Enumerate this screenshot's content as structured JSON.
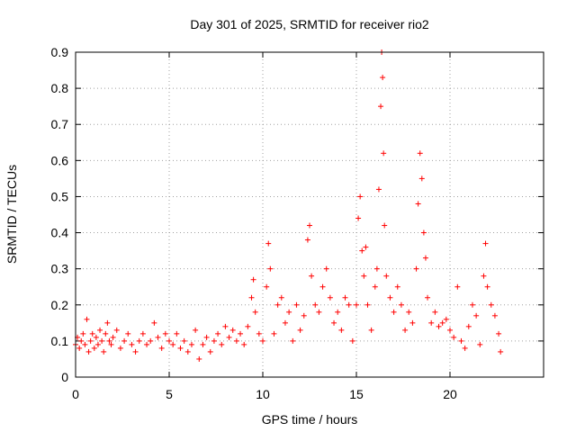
{
  "chart_data": {
    "type": "scatter",
    "title": "Day 301 of 2025, SRMTID for receiver rio2",
    "xlabel": "GPS time / hours",
    "ylabel": "SRMTID / TECUs",
    "xlim": [
      0,
      25
    ],
    "ylim": [
      0,
      0.9
    ],
    "xticks": [
      0,
      5,
      10,
      15,
      20
    ],
    "yticks": [
      0,
      0.1,
      0.2,
      0.3,
      0.4,
      0.5,
      0.6,
      0.7,
      0.8,
      0.9
    ],
    "grid": true,
    "marker": "+",
    "series_color": "#ff0000",
    "series": [
      {
        "name": "rio2",
        "points": [
          [
            0.0,
            0.09
          ],
          [
            0.1,
            0.11
          ],
          [
            0.2,
            0.08
          ],
          [
            0.3,
            0.1
          ],
          [
            0.4,
            0.12
          ],
          [
            0.5,
            0.09
          ],
          [
            0.6,
            0.16
          ],
          [
            0.7,
            0.07
          ],
          [
            0.8,
            0.1
          ],
          [
            0.9,
            0.12
          ],
          [
            1.0,
            0.08
          ],
          [
            1.1,
            0.11
          ],
          [
            1.2,
            0.09
          ],
          [
            1.3,
            0.13
          ],
          [
            1.4,
            0.1
          ],
          [
            1.5,
            0.07
          ],
          [
            1.6,
            0.12
          ],
          [
            1.7,
            0.15
          ],
          [
            1.8,
            0.1
          ],
          [
            1.9,
            0.09
          ],
          [
            2.0,
            0.11
          ],
          [
            2.2,
            0.13
          ],
          [
            2.4,
            0.08
          ],
          [
            2.6,
            0.1
          ],
          [
            2.8,
            0.12
          ],
          [
            3.0,
            0.09
          ],
          [
            3.2,
            0.07
          ],
          [
            3.4,
            0.1
          ],
          [
            3.6,
            0.12
          ],
          [
            3.8,
            0.09
          ],
          [
            4.0,
            0.1
          ],
          [
            4.2,
            0.15
          ],
          [
            4.4,
            0.11
          ],
          [
            4.6,
            0.08
          ],
          [
            4.8,
            0.12
          ],
          [
            5.0,
            0.1
          ],
          [
            5.2,
            0.09
          ],
          [
            5.4,
            0.12
          ],
          [
            5.6,
            0.08
          ],
          [
            5.8,
            0.1
          ],
          [
            6.0,
            0.07
          ],
          [
            6.2,
            0.09
          ],
          [
            6.4,
            0.13
          ],
          [
            6.6,
            0.05
          ],
          [
            6.8,
            0.09
          ],
          [
            7.0,
            0.11
          ],
          [
            7.2,
            0.07
          ],
          [
            7.4,
            0.1
          ],
          [
            7.6,
            0.12
          ],
          [
            7.8,
            0.09
          ],
          [
            8.0,
            0.14
          ],
          [
            8.2,
            0.11
          ],
          [
            8.4,
            0.13
          ],
          [
            8.6,
            0.1
          ],
          [
            8.8,
            0.12
          ],
          [
            9.0,
            0.09
          ],
          [
            9.2,
            0.14
          ],
          [
            9.4,
            0.22
          ],
          [
            9.5,
            0.27
          ],
          [
            9.6,
            0.18
          ],
          [
            9.8,
            0.12
          ],
          [
            10.0,
            0.1
          ],
          [
            10.2,
            0.25
          ],
          [
            10.3,
            0.37
          ],
          [
            10.4,
            0.3
          ],
          [
            10.6,
            0.12
          ],
          [
            10.8,
            0.2
          ],
          [
            11.0,
            0.22
          ],
          [
            11.2,
            0.15
          ],
          [
            11.4,
            0.18
          ],
          [
            11.6,
            0.1
          ],
          [
            11.8,
            0.2
          ],
          [
            12.0,
            0.13
          ],
          [
            12.2,
            0.17
          ],
          [
            12.4,
            0.38
          ],
          [
            12.5,
            0.42
          ],
          [
            12.6,
            0.28
          ],
          [
            12.8,
            0.2
          ],
          [
            13.0,
            0.18
          ],
          [
            13.2,
            0.25
          ],
          [
            13.4,
            0.3
          ],
          [
            13.6,
            0.22
          ],
          [
            13.8,
            0.15
          ],
          [
            14.0,
            0.18
          ],
          [
            14.2,
            0.13
          ],
          [
            14.4,
            0.22
          ],
          [
            14.6,
            0.2
          ],
          [
            14.8,
            0.1
          ],
          [
            15.0,
            0.2
          ],
          [
            15.1,
            0.44
          ],
          [
            15.2,
            0.5
          ],
          [
            15.3,
            0.35
          ],
          [
            15.4,
            0.28
          ],
          [
            15.5,
            0.36
          ],
          [
            15.6,
            0.2
          ],
          [
            15.8,
            0.13
          ],
          [
            16.0,
            0.25
          ],
          [
            16.1,
            0.3
          ],
          [
            16.2,
            0.52
          ],
          [
            16.3,
            0.75
          ],
          [
            16.35,
            0.9
          ],
          [
            16.4,
            0.83
          ],
          [
            16.45,
            0.62
          ],
          [
            16.5,
            0.42
          ],
          [
            16.6,
            0.28
          ],
          [
            16.8,
            0.22
          ],
          [
            17.0,
            0.18
          ],
          [
            17.2,
            0.25
          ],
          [
            17.4,
            0.2
          ],
          [
            17.6,
            0.13
          ],
          [
            17.8,
            0.18
          ],
          [
            18.0,
            0.15
          ],
          [
            18.2,
            0.3
          ],
          [
            18.3,
            0.48
          ],
          [
            18.4,
            0.62
          ],
          [
            18.5,
            0.55
          ],
          [
            18.6,
            0.4
          ],
          [
            18.7,
            0.33
          ],
          [
            18.8,
            0.22
          ],
          [
            19.0,
            0.15
          ],
          [
            19.2,
            0.18
          ],
          [
            19.4,
            0.14
          ],
          [
            19.6,
            0.15
          ],
          [
            19.8,
            0.16
          ],
          [
            20.0,
            0.13
          ],
          [
            20.2,
            0.11
          ],
          [
            20.4,
            0.25
          ],
          [
            20.6,
            0.1
          ],
          [
            20.8,
            0.08
          ],
          [
            21.0,
            0.14
          ],
          [
            21.2,
            0.2
          ],
          [
            21.4,
            0.17
          ],
          [
            21.6,
            0.09
          ],
          [
            21.8,
            0.28
          ],
          [
            21.9,
            0.37
          ],
          [
            22.0,
            0.25
          ],
          [
            22.2,
            0.2
          ],
          [
            22.4,
            0.17
          ],
          [
            22.6,
            0.12
          ],
          [
            22.7,
            0.07
          ]
        ]
      }
    ]
  }
}
